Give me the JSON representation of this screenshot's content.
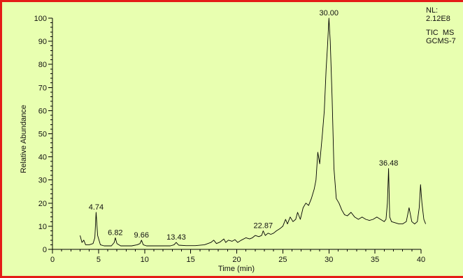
{
  "window": {
    "border_color": "#e41b17",
    "background_color": "#e8ffb0"
  },
  "info_box": {
    "lines": [
      "NL:",
      "2.12E8",
      "TIC  MS",
      "GCMS-7"
    ]
  },
  "chart_data": {
    "type": "line",
    "title": "",
    "xlabel": "Time (min)",
    "ylabel": "Relative Abundance",
    "xlim": [
      0,
      40
    ],
    "ylim": [
      0,
      100
    ],
    "x_ticks": [
      0,
      5,
      10,
      15,
      20,
      25,
      30,
      35,
      40
    ],
    "y_ticks": [
      0,
      10,
      20,
      30,
      40,
      50,
      60,
      70,
      80,
      90,
      100
    ],
    "grid": false,
    "series": [
      {
        "color": "#000000",
        "x": [
          3.0,
          3.2,
          3.4,
          3.6,
          4.0,
          4.4,
          4.6,
          4.74,
          4.9,
          5.2,
          5.6,
          6.0,
          6.4,
          6.7,
          6.82,
          7.0,
          7.4,
          8.0,
          8.6,
          9.2,
          9.5,
          9.66,
          9.85,
          10.2,
          11.0,
          12.0,
          12.8,
          13.2,
          13.43,
          13.7,
          14.5,
          15.5,
          16.5,
          17.2,
          17.5,
          17.8,
          18.2,
          18.6,
          18.8,
          19.1,
          19.5,
          19.8,
          20.1,
          20.5,
          21.0,
          21.4,
          21.7,
          22.0,
          22.4,
          22.7,
          22.87,
          23.1,
          23.4,
          23.7,
          24.0,
          24.3,
          24.7,
          25.0,
          25.3,
          25.5,
          25.8,
          26.1,
          26.4,
          26.6,
          26.9,
          27.2,
          27.5,
          27.8,
          28.1,
          28.4,
          28.6,
          28.8,
          29.0,
          29.3,
          29.5,
          29.7,
          29.85,
          30.0,
          30.15,
          30.35,
          30.55,
          30.8,
          31.1,
          31.4,
          31.7,
          32.0,
          32.4,
          32.8,
          33.2,
          33.6,
          34.0,
          34.4,
          34.8,
          35.2,
          35.6,
          36.0,
          36.2,
          36.35,
          36.48,
          36.6,
          36.8,
          37.2,
          37.6,
          38.0,
          38.4,
          38.7,
          39.0,
          39.3,
          39.6,
          39.8,
          39.95,
          40.1,
          40.3,
          40.5
        ],
        "y": [
          6,
          3,
          4,
          2,
          2,
          2.5,
          5,
          16,
          6,
          2,
          1.5,
          1.5,
          1.5,
          3,
          5,
          2.5,
          1.5,
          1.5,
          1.5,
          2,
          2.5,
          4,
          2,
          1.5,
          1.5,
          1.5,
          1.5,
          2,
          3,
          1.8,
          1.6,
          1.6,
          2,
          3,
          4,
          2.5,
          3.2,
          4.5,
          3,
          4,
          3.5,
          4.2,
          3,
          4,
          5,
          4.5,
          5,
          6,
          5.5,
          6,
          8,
          6,
          7,
          6.5,
          7,
          8,
          9,
          10,
          13,
          11,
          14,
          12,
          13,
          16,
          13,
          18,
          20,
          19,
          22,
          26,
          30,
          42,
          37,
          50,
          60,
          78,
          88,
          100,
          90,
          65,
          35,
          22,
          20,
          17,
          15,
          14.5,
          16,
          14,
          13,
          14,
          13,
          12.5,
          13,
          14,
          13,
          12,
          13,
          20,
          35,
          14,
          12,
          11.5,
          11,
          11,
          12,
          18,
          12,
          11,
          12,
          18,
          28,
          20,
          13,
          11
        ]
      }
    ],
    "annotations": [
      {
        "label": "4.74",
        "x": 4.74,
        "y": 16
      },
      {
        "label": "6.82",
        "x": 6.82,
        "y": 5
      },
      {
        "label": "9.66",
        "x": 9.66,
        "y": 4
      },
      {
        "label": "13.43",
        "x": 13.43,
        "y": 3
      },
      {
        "label": "22.87",
        "x": 22.87,
        "y": 8
      },
      {
        "label": "30.00",
        "x": 30.0,
        "y": 100
      },
      {
        "label": "36.48",
        "x": 36.48,
        "y": 35
      }
    ]
  }
}
